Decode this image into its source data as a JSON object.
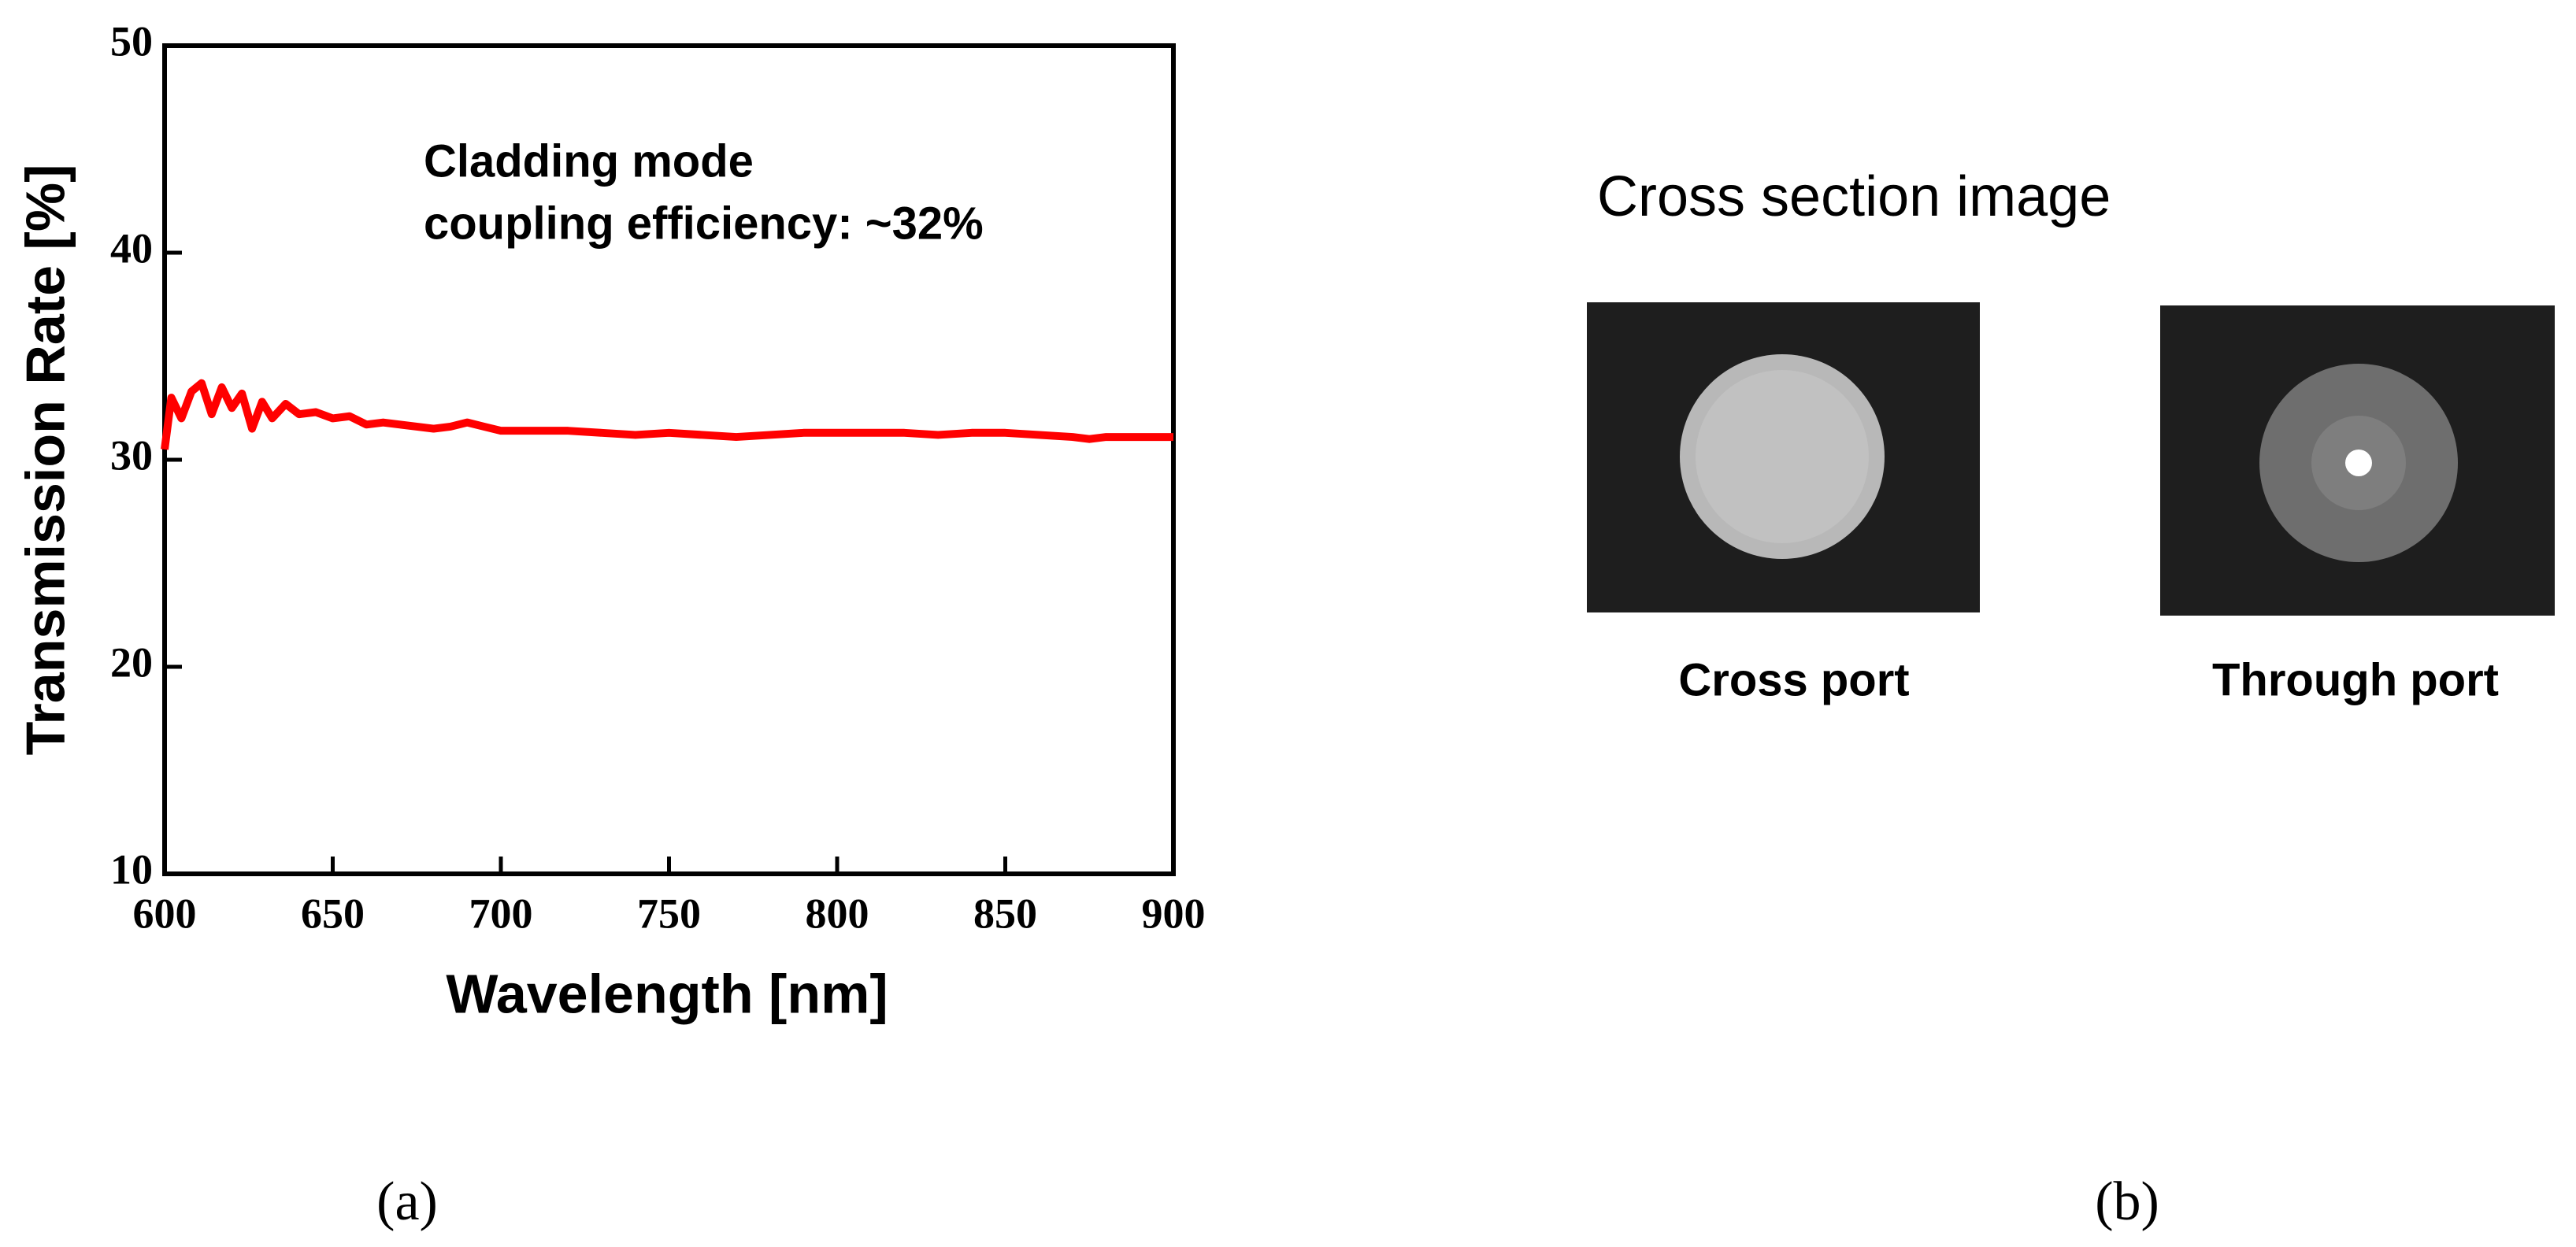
{
  "chart_data": {
    "type": "line",
    "xlabel": "Wavelength [nm]",
    "ylabel": "Transmission Rate [%]",
    "annotation": [
      "Cladding mode",
      "coupling efficiency: ~32%"
    ],
    "x": [
      600,
      602,
      605,
      608,
      611,
      614,
      617,
      620,
      623,
      626,
      629,
      632,
      636,
      640,
      645,
      650,
      655,
      660,
      665,
      670,
      675,
      680,
      685,
      690,
      695,
      700,
      710,
      720,
      730,
      740,
      750,
      760,
      770,
      780,
      790,
      800,
      810,
      820,
      830,
      840,
      850,
      860,
      870,
      875,
      880,
      890,
      900
    ],
    "series": [
      {
        "color": "#ff0000",
        "values": [
          30.5,
          33,
          32,
          33.3,
          33.7,
          32.2,
          33.5,
          32.5,
          33.2,
          31.5,
          32.8,
          32.0,
          32.7,
          32.2,
          32.3,
          32.0,
          32.1,
          31.7,
          31.8,
          31.7,
          31.6,
          31.5,
          31.6,
          31.8,
          31.6,
          31.4,
          31.4,
          31.4,
          31.3,
          31.2,
          31.3,
          31.2,
          31.1,
          31.2,
          31.3,
          31.3,
          31.3,
          31.3,
          31.2,
          31.3,
          31.3,
          31.2,
          31.1,
          31.0,
          31.1,
          31.1,
          31.1
        ]
      }
    ],
    "xlim": [
      600,
      900
    ],
    "xticks": [
      600,
      650,
      700,
      750,
      800,
      850,
      900
    ],
    "ylim": [
      10,
      50
    ],
    "yticks": [
      10,
      20,
      30,
      40,
      50
    ]
  },
  "panel_b": {
    "title": "Cross section image",
    "images": [
      {
        "label": "Cross port"
      },
      {
        "label": "Through port"
      }
    ]
  },
  "subfigure_labels": [
    "(a)",
    "(b)"
  ]
}
